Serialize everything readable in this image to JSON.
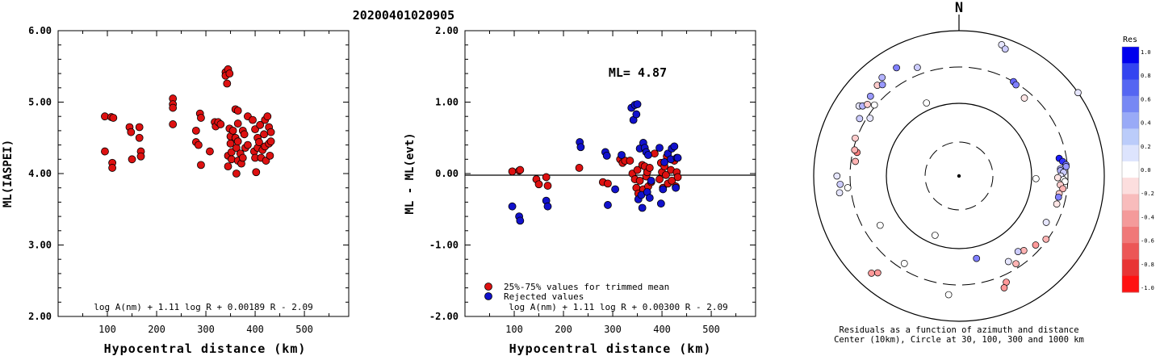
{
  "event_id": "20200401020905",
  "charts": {
    "ml_vs_distance": {
      "type": "scatter",
      "xlabel": "Hypocentral distance (km)",
      "ylabel": "ML(IASPEI)",
      "xlim": [
        0,
        590
      ],
      "ylim": [
        2.0,
        6.0
      ],
      "xticks": [
        "100",
        "200",
        "300",
        "400",
        "500"
      ],
      "yticks": [
        "2.00",
        "3.00",
        "4.00",
        "5.00",
        "6.00"
      ],
      "formula": "log A(nm) + 1.11 log R + 0.00189 R - 2.09",
      "marker_color": "#dd1111",
      "points": [
        [
          95,
          4.8
        ],
        [
          95,
          4.31
        ],
        [
          108,
          4.79
        ],
        [
          110,
          4.15
        ],
        [
          110,
          4.08
        ],
        [
          112,
          4.78
        ],
        [
          145,
          4.65
        ],
        [
          148,
          4.58
        ],
        [
          150,
          4.2
        ],
        [
          165,
          4.65
        ],
        [
          165,
          4.5
        ],
        [
          168,
          4.31
        ],
        [
          168,
          4.24
        ],
        [
          233,
          5.05
        ],
        [
          233,
          4.97
        ],
        [
          233,
          4.92
        ],
        [
          233,
          4.69
        ],
        [
          280,
          4.6
        ],
        [
          280,
          4.44
        ],
        [
          285,
          4.4
        ],
        [
          288,
          4.84
        ],
        [
          290,
          4.12
        ],
        [
          290,
          4.78
        ],
        [
          308,
          4.31
        ],
        [
          318,
          4.72
        ],
        [
          320,
          4.66
        ],
        [
          325,
          4.72
        ],
        [
          330,
          4.69
        ],
        [
          340,
          5.42
        ],
        [
          340,
          5.37
        ],
        [
          343,
          5.26
        ],
        [
          345,
          5.46
        ],
        [
          345,
          4.25
        ],
        [
          345,
          4.1
        ],
        [
          348,
          5.4
        ],
        [
          348,
          4.63
        ],
        [
          350,
          4.52
        ],
        [
          350,
          4.42
        ],
        [
          352,
          4.3
        ],
        [
          352,
          4.2
        ],
        [
          355,
          4.6
        ],
        [
          360,
          4.9
        ],
        [
          360,
          4.5
        ],
        [
          362,
          4.36
        ],
        [
          362,
          4.0
        ],
        [
          365,
          4.88
        ],
        [
          365,
          4.7
        ],
        [
          365,
          4.45
        ],
        [
          365,
          4.18
        ],
        [
          370,
          4.28
        ],
        [
          372,
          4.14
        ],
        [
          375,
          4.22
        ],
        [
          375,
          4.6
        ],
        [
          378,
          4.55
        ],
        [
          380,
          4.36
        ],
        [
          385,
          4.8
        ],
        [
          385,
          4.4
        ],
        [
          395,
          4.75
        ],
        [
          398,
          4.31
        ],
        [
          400,
          4.62
        ],
        [
          400,
          4.22
        ],
        [
          402,
          4.02
        ],
        [
          405,
          4.5
        ],
        [
          405,
          4.36
        ],
        [
          408,
          4.44
        ],
        [
          410,
          4.68
        ],
        [
          412,
          4.22
        ],
        [
          415,
          4.33
        ],
        [
          418,
          4.55
        ],
        [
          420,
          4.75
        ],
        [
          420,
          4.38
        ],
        [
          422,
          4.18
        ],
        [
          425,
          4.8
        ],
        [
          428,
          4.65
        ],
        [
          428,
          4.42
        ],
        [
          430,
          4.25
        ],
        [
          432,
          4.58
        ],
        [
          432,
          4.45
        ]
      ]
    },
    "ml_residuals": {
      "type": "scatter",
      "xlabel": "Hypocentral distance (km)",
      "ylabel": "ML - ML(evt)",
      "xlim": [
        0,
        590
      ],
      "ylim": [
        -2.0,
        2.0
      ],
      "xticks": [
        "100",
        "200",
        "300",
        "400",
        "500"
      ],
      "yticks": [
        "-2.00",
        "-1.00",
        "0.00",
        "1.00",
        "2.00"
      ],
      "ml_label": "ML= 4.87",
      "formula": "log A(nm) + 1.11 log R + 0.00300 R - 2.09",
      "legend": {
        "used": "25%-75% values for trimmed mean",
        "rejected": "Rejected values",
        "used_color": "#dd1111",
        "rejected_color": "#1111cc"
      },
      "used_points": [
        [
          96,
          0.03
        ],
        [
          110,
          0.04
        ],
        [
          112,
          0.05
        ],
        [
          145,
          -0.08
        ],
        [
          150,
          -0.15
        ],
        [
          165,
          -0.05
        ],
        [
          168,
          -0.17
        ],
        [
          232,
          0.08
        ],
        [
          280,
          -0.12
        ],
        [
          290,
          -0.14
        ],
        [
          315,
          0.2
        ],
        [
          320,
          0.15
        ],
        [
          325,
          0.18
        ],
        [
          335,
          0.18
        ],
        [
          340,
          0.0
        ],
        [
          345,
          -0.08
        ],
        [
          348,
          -0.2
        ],
        [
          350,
          0.05
        ],
        [
          352,
          -0.28
        ],
        [
          355,
          -0.1
        ],
        [
          360,
          0.12
        ],
        [
          362,
          -0.22
        ],
        [
          365,
          0.1
        ],
        [
          368,
          -0.04
        ],
        [
          370,
          0.02
        ],
        [
          372,
          -0.18
        ],
        [
          375,
          0.08
        ],
        [
          378,
          -0.12
        ],
        [
          385,
          0.28
        ],
        [
          395,
          -0.08
        ],
        [
          398,
          0.15
        ],
        [
          400,
          0.02
        ],
        [
          402,
          -0.2
        ],
        [
          405,
          0.1
        ],
        [
          408,
          -0.02
        ],
        [
          410,
          0.24
        ],
        [
          412,
          -0.14
        ],
        [
          418,
          0.05
        ],
        [
          420,
          -0.1
        ],
        [
          425,
          0.18
        ],
        [
          428,
          -0.18
        ],
        [
          430,
          0.02
        ],
        [
          432,
          -0.05
        ]
      ],
      "rejected_points": [
        [
          96,
          -0.46
        ],
        [
          110,
          -0.6
        ],
        [
          112,
          -0.66
        ],
        [
          165,
          -0.38
        ],
        [
          168,
          -0.46
        ],
        [
          233,
          0.44
        ],
        [
          235,
          0.37
        ],
        [
          285,
          0.3
        ],
        [
          288,
          0.25
        ],
        [
          290,
          -0.44
        ],
        [
          305,
          -0.22
        ],
        [
          318,
          0.26
        ],
        [
          338,
          0.92
        ],
        [
          342,
          0.75
        ],
        [
          345,
          0.96
        ],
        [
          348,
          0.83
        ],
        [
          350,
          0.97
        ],
        [
          352,
          -0.36
        ],
        [
          355,
          0.35
        ],
        [
          358,
          -0.3
        ],
        [
          360,
          -0.48
        ],
        [
          362,
          0.43
        ],
        [
          365,
          0.36
        ],
        [
          368,
          0.3
        ],
        [
          370,
          -0.26
        ],
        [
          372,
          0.26
        ],
        [
          375,
          -0.34
        ],
        [
          378,
          -0.1
        ],
        [
          395,
          0.36
        ],
        [
          398,
          -0.42
        ],
        [
          402,
          -0.22
        ],
        [
          405,
          0.16
        ],
        [
          412,
          0.28
        ],
        [
          418,
          0.2
        ],
        [
          420,
          0.35
        ],
        [
          425,
          0.38
        ],
        [
          428,
          -0.2
        ],
        [
          430,
          0.22
        ],
        [
          432,
          0.22
        ]
      ]
    },
    "azimuth_plot": {
      "type": "polar_scatter",
      "north_label": "N",
      "caption_line1": "Residuals as a function of azimuth and distance",
      "caption_line2": "Center (10km), Circle at 30, 100, 300 and 1000 km",
      "colorbar_title": "Res",
      "colorbar_ticks": [
        "1.0",
        "0.8",
        "0.6",
        "0.4",
        "0.2",
        "0.0",
        "-0.2",
        "-0.4",
        "-0.6",
        "-0.8",
        "-1.0"
      ],
      "colorbar_colors": [
        "#0000ee",
        "#3344f0",
        "#5566f2",
        "#7788f4",
        "#99aaf7",
        "#bbccfa",
        "#dde4fd",
        "#ffffff",
        "#fcdede",
        "#f8bcbc",
        "#f49a9a",
        "#f07878",
        "#ec5656",
        "#e83434",
        "#ff1111"
      ],
      "stations": [
        [
          55,
          1.0,
          0.1
        ],
        [
          18,
          0.95,
          0.1
        ],
        [
          20,
          0.93,
          0.2
        ],
        [
          30,
          0.75,
          0.6
        ],
        [
          32,
          0.74,
          0.5
        ],
        [
          40,
          0.7,
          -0.1
        ],
        [
          80,
          0.7,
          0.9
        ],
        [
          82,
          0.72,
          0.8
        ],
        [
          84,
          0.74,
          0.5
        ],
        [
          85,
          0.74,
          0.4
        ],
        [
          86,
          0.7,
          0.3
        ],
        [
          87,
          0.7,
          0.3
        ],
        [
          88,
          0.72,
          0.2
        ],
        [
          90,
          0.7,
          0.1
        ],
        [
          91,
          0.68,
          -0.1
        ],
        [
          92,
          0.72,
          0.0
        ],
        [
          93,
          0.73,
          0.0
        ],
        [
          95,
          0.7,
          -0.2
        ],
        [
          97,
          0.72,
          -0.3
        ],
        [
          100,
          0.7,
          -0.2
        ],
        [
          102,
          0.7,
          0.5
        ],
        [
          106,
          0.7,
          -0.1
        ],
        [
          92,
          0.53,
          0.0
        ],
        [
          118,
          0.68,
          0.1
        ],
        [
          126,
          0.74,
          -0.3
        ],
        [
          132,
          0.71,
          -0.4
        ],
        [
          139,
          0.68,
          -0.3
        ],
        [
          142,
          0.66,
          0.2
        ],
        [
          147,
          0.72,
          -0.3
        ],
        [
          150,
          0.68,
          0.1
        ],
        [
          156,
          0.8,
          -0.4
        ],
        [
          158,
          0.83,
          -0.4
        ],
        [
          168,
          0.58,
          0.5
        ],
        [
          185,
          0.82,
          0.0
        ],
        [
          202,
          0.44,
          0.0
        ],
        [
          212,
          0.71,
          0.0
        ],
        [
          220,
          0.87,
          -0.4
        ],
        [
          222,
          0.9,
          -0.4
        ],
        [
          238,
          0.64,
          0.0
        ],
        [
          264,
          0.77,
          0.0
        ],
        [
          262,
          0.83,
          0.1
        ],
        [
          266,
          0.82,
          0.2
        ],
        [
          270,
          0.84,
          0.1
        ],
        [
          278,
          0.72,
          -0.3
        ],
        [
          283,
          0.72,
          -0.5
        ],
        [
          284,
          0.74,
          -0.3
        ],
        [
          290,
          0.76,
          -0.2
        ],
        [
          300,
          0.79,
          0.2
        ],
        [
          303,
          0.73,
          0.1
        ],
        [
          305,
          0.84,
          0.1
        ],
        [
          306,
          0.82,
          0.3
        ],
        [
          308,
          0.8,
          -0.2
        ],
        [
          310,
          0.76,
          0.0
        ],
        [
          312,
          0.82,
          0.4
        ],
        [
          318,
          0.84,
          -0.2
        ],
        [
          320,
          0.82,
          0.4
        ],
        [
          322,
          0.86,
          0.3
        ],
        [
          330,
          0.86,
          0.5
        ],
        [
          336,
          0.55,
          0.0
        ],
        [
          339,
          0.8,
          0.2
        ]
      ]
    }
  }
}
